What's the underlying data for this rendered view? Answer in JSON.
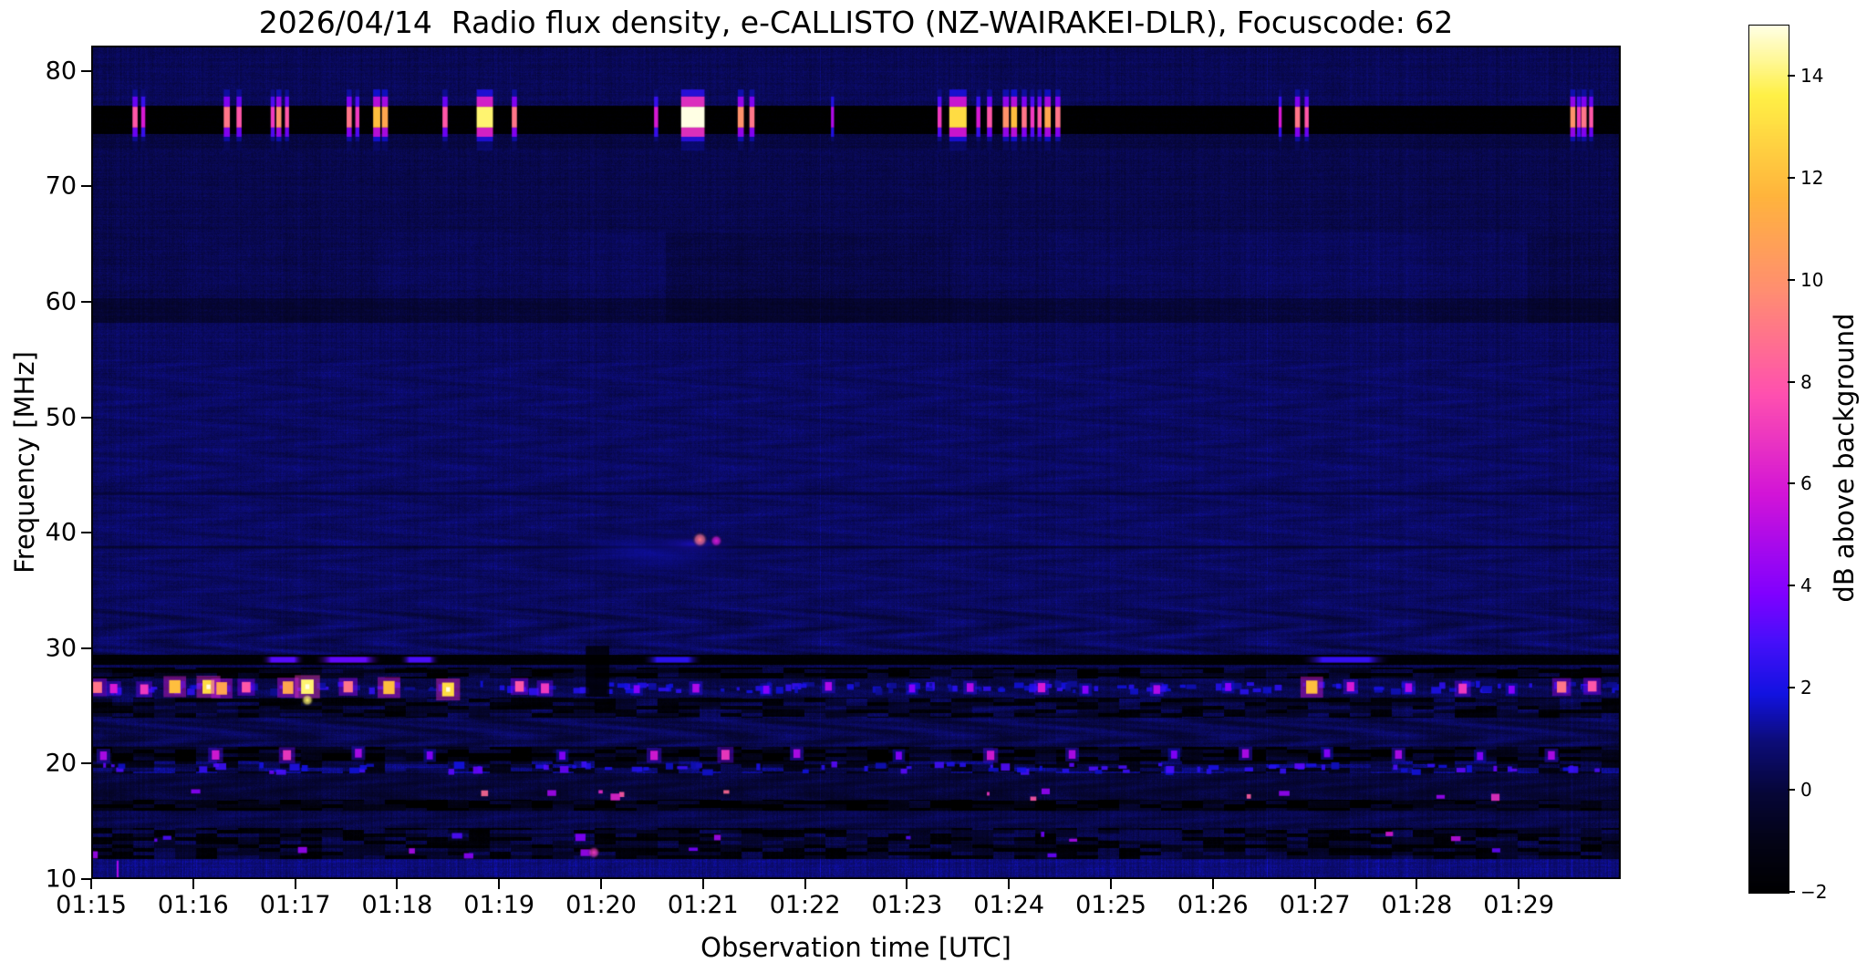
{
  "chart_data": {
    "type": "heatmap",
    "title": "2026/04/14  Radio flux density, e-CALLISTO (NZ-WAIRAKEI-DLR), Focuscode: 62",
    "xlabel": "Observation time [UTC]",
    "ylabel": "Frequency [MHz]",
    "colorbar_label": "dB above background",
    "x_ticks": [
      {
        "label": "01:15",
        "t": 0
      },
      {
        "label": "01:16",
        "t": 1
      },
      {
        "label": "01:17",
        "t": 2
      },
      {
        "label": "01:18",
        "t": 3
      },
      {
        "label": "01:19",
        "t": 4
      },
      {
        "label": "01:20",
        "t": 5
      },
      {
        "label": "01:21",
        "t": 6
      },
      {
        "label": "01:22",
        "t": 7
      },
      {
        "label": "01:23",
        "t": 8
      },
      {
        "label": "01:24",
        "t": 9
      },
      {
        "label": "01:25",
        "t": 10
      },
      {
        "label": "01:26",
        "t": 11
      },
      {
        "label": "01:27",
        "t": 12
      },
      {
        "label": "01:28",
        "t": 13
      },
      {
        "label": "01:29",
        "t": 14
      }
    ],
    "y_ticks": [
      {
        "label": "10",
        "f": 10
      },
      {
        "label": "20",
        "f": 20
      },
      {
        "label": "30",
        "f": 30
      },
      {
        "label": "40",
        "f": 40
      },
      {
        "label": "50",
        "f": 50
      },
      {
        "label": "60",
        "f": 60
      },
      {
        "label": "70",
        "f": 70
      },
      {
        "label": "80",
        "f": 80
      }
    ],
    "colorbar_ticks": [
      {
        "label": "14",
        "v": 14
      },
      {
        "label": "12",
        "v": 12
      },
      {
        "label": "10",
        "v": 10
      },
      {
        "label": "8",
        "v": 8
      },
      {
        "label": "6",
        "v": 6
      },
      {
        "label": "4",
        "v": 4
      },
      {
        "label": "2",
        "v": 2
      },
      {
        "label": "0",
        "v": 0
      },
      {
        "label": "−2",
        "v": -2
      }
    ],
    "x_range_minutes": [
      0,
      15
    ],
    "y_range_mhz": [
      10,
      82.2
    ],
    "color_range_db": [
      -2,
      15.0
    ],
    "grid": false,
    "colormap_stops": [
      [
        0.0,
        [
          0,
          0,
          0
        ]
      ],
      [
        0.06,
        [
          3,
          3,
          22
        ]
      ],
      [
        0.115,
        [
          6,
          6,
          55
        ]
      ],
      [
        0.175,
        [
          12,
          12,
          120
        ]
      ],
      [
        0.23,
        [
          18,
          18,
          225
        ]
      ],
      [
        0.29,
        [
          70,
          15,
          250
        ]
      ],
      [
        0.345,
        [
          128,
          0,
          255
        ]
      ],
      [
        0.46,
        [
          210,
          20,
          215
        ]
      ],
      [
        0.575,
        [
          255,
          80,
          175
        ]
      ],
      [
        0.69,
        [
          255,
          140,
          115
        ]
      ],
      [
        0.805,
        [
          255,
          180,
          60
        ]
      ],
      [
        0.92,
        [
          255,
          240,
          70
        ]
      ],
      [
        1.0,
        [
          255,
          255,
          228
        ]
      ]
    ],
    "background_regions": [
      {
        "f": [
          77,
          82.2
        ],
        "base": 0.45,
        "streak": 0.35,
        "wave": 0.06,
        "dash": 0,
        "blocky": 0
      },
      {
        "f": [
          74.55,
          77
        ],
        "base": -1.95,
        "streak": 0.04,
        "wave": 0,
        "dash": 0,
        "blocky": 0
      },
      {
        "f": [
          73.3,
          74.55
        ],
        "base": 0.1,
        "streak": 0.22,
        "wave": 0,
        "dash": 0,
        "blocky": 0
      },
      {
        "f": [
          66,
          73.3
        ],
        "base": 0.3,
        "streak": 0.3,
        "wave": 0.05,
        "dash": 0,
        "blocky": 0
      },
      {
        "f": [
          60.3,
          66
        ],
        "base": 0.35,
        "streak": 0.32,
        "wave": 0.07,
        "dash": 0,
        "blocky": 1
      },
      {
        "f": [
          58.2,
          60.3
        ],
        "base": -0.2,
        "streak": 0.35,
        "wave": 0.06,
        "dash": 0,
        "blocky": 1
      },
      {
        "f": [
          55,
          58.2
        ],
        "base": 0.55,
        "streak": 0.35,
        "wave": 0.07,
        "dash": 0,
        "blocky": 0
      },
      {
        "f": [
          33.5,
          55
        ],
        "base": 0.62,
        "streak": 0.3,
        "wave": 0.22,
        "dash": 0,
        "blocky": 0
      },
      {
        "f": [
          29.45,
          33.5
        ],
        "base": 0.5,
        "streak": 0.3,
        "wave": 0.42,
        "dash": 0,
        "blocky": 0
      },
      {
        "f": [
          28.6,
          29.45
        ],
        "base": -1.75,
        "streak": 0.05,
        "wave": 0,
        "dash": 0,
        "blocky": 0
      },
      {
        "f": [
          28.3,
          28.6
        ],
        "base": 0.4,
        "streak": 0.3,
        "wave": 0.2,
        "dash": 0,
        "blocky": 0
      },
      {
        "f": [
          27.35,
          28.3
        ],
        "base": -0.8,
        "streak": 0.3,
        "wave": 0.25,
        "dash": 1,
        "blocky": 0
      },
      {
        "f": [
          25.75,
          27.35
        ],
        "base": 0.3,
        "streak": 0.35,
        "wave": 0.3,
        "dash": 0,
        "blocky": 0
      },
      {
        "f": [
          24.0,
          25.75
        ],
        "base": -0.5,
        "streak": 0.35,
        "wave": 0.3,
        "dash": 1,
        "blocky": 0
      },
      {
        "f": [
          21.45,
          24.0
        ],
        "base": 0.3,
        "streak": 0.3,
        "wave": 0.48,
        "dash": 0,
        "blocky": 0
      },
      {
        "f": [
          20.2,
          21.45
        ],
        "base": -1.0,
        "streak": 0.25,
        "wave": 0.2,
        "dash": 1,
        "blocky": 0
      },
      {
        "f": [
          19.2,
          20.2
        ],
        "base": 0.1,
        "streak": 0.4,
        "wave": 0.25,
        "dash": 1,
        "blocky": 0
      },
      {
        "f": [
          16.9,
          19.2
        ],
        "base": -0.05,
        "streak": 0.4,
        "wave": 0.32,
        "dash": 0,
        "blocky": 0
      },
      {
        "f": [
          15.9,
          16.9
        ],
        "base": -1.2,
        "streak": 0.3,
        "wave": 0.15,
        "dash": 1,
        "blocky": 0
      },
      {
        "f": [
          14.4,
          15.9
        ],
        "base": 0.25,
        "streak": 0.4,
        "wave": 0.25,
        "dash": 0,
        "blocky": 0
      },
      {
        "f": [
          12.9,
          14.4
        ],
        "base": -0.6,
        "streak": 0.45,
        "wave": 0.2,
        "dash": 1,
        "blocky": 0
      },
      {
        "f": [
          11.7,
          12.9
        ],
        "base": -0.7,
        "streak": 0.45,
        "wave": 0.2,
        "dash": 1,
        "blocky": 0
      },
      {
        "f": [
          10,
          11.7
        ],
        "base": 1.0,
        "streak": 0.5,
        "wave": 0.1,
        "dash": 0,
        "blocky": 0
      }
    ],
    "features": {
      "rfi_band_76mhz": {
        "f_core": [
          75.1,
          76.9
        ],
        "bursts": [
          [
            0.43,
            0.05,
            8
          ],
          [
            0.51,
            0.04,
            6
          ],
          [
            1.33,
            0.06,
            9
          ],
          [
            1.45,
            0.05,
            8
          ],
          [
            1.78,
            0.04,
            7
          ],
          [
            1.84,
            0.05,
            10
          ],
          [
            1.92,
            0.04,
            8
          ],
          [
            2.53,
            0.05,
            9
          ],
          [
            2.61,
            0.04,
            7
          ],
          [
            2.8,
            0.07,
            12
          ],
          [
            2.88,
            0.06,
            11
          ],
          [
            3.47,
            0.05,
            8
          ],
          [
            3.86,
            0.16,
            14
          ],
          [
            4.15,
            0.05,
            9
          ],
          [
            5.54,
            0.04,
            6
          ],
          [
            5.9,
            0.23,
            15
          ],
          [
            6.37,
            0.06,
            10
          ],
          [
            6.48,
            0.05,
            9
          ],
          [
            7.27,
            0.03,
            5
          ],
          [
            8.32,
            0.04,
            7
          ],
          [
            8.5,
            0.17,
            13
          ],
          [
            8.7,
            0.04,
            6
          ],
          [
            8.81,
            0.05,
            8
          ],
          [
            8.97,
            0.06,
            10
          ],
          [
            9.05,
            0.06,
            12
          ],
          [
            9.15,
            0.05,
            9
          ],
          [
            9.23,
            0.04,
            7
          ],
          [
            9.3,
            0.04,
            8
          ],
          [
            9.38,
            0.06,
            11
          ],
          [
            9.48,
            0.05,
            9
          ],
          [
            11.66,
            0.03,
            6
          ],
          [
            11.83,
            0.05,
            9
          ],
          [
            11.92,
            0.04,
            8
          ],
          [
            14.53,
            0.05,
            10
          ],
          [
            14.59,
            0.04,
            7
          ],
          [
            14.64,
            0.05,
            9
          ],
          [
            14.71,
            0.04,
            8
          ]
        ]
      },
      "line_29mhz": {
        "f": 29.0,
        "bright_segments": [
          [
            1.66,
            2.1,
            3.2
          ],
          [
            2.18,
            2.86,
            3.4
          ],
          [
            3.02,
            3.42,
            3.0
          ],
          [
            5.4,
            6.0,
            2.4
          ],
          [
            11.85,
            12.75,
            2.6
          ]
        ]
      },
      "drift_blob_40mhz": [
        {
          "t": 5.5,
          "f": 38.3,
          "rt": 1.5,
          "rf": 3.0,
          "amp": 1.7
        },
        {
          "t": 5.9,
          "f": 39.0,
          "rt": 0.55,
          "rf": 1.1,
          "amp": 2.3
        }
      ],
      "bright_dots": [
        {
          "t": 5.97,
          "f": 39.4,
          "amp": 9,
          "r": 5
        },
        {
          "t": 6.13,
          "f": 39.3,
          "amp": 6,
          "r": 4
        },
        {
          "t": 2.12,
          "f": 25.5,
          "amp": 14,
          "r": 4
        },
        {
          "t": 4.93,
          "f": 12.3,
          "amp": 7,
          "r": 4
        }
      ],
      "burst_line_26mhz": {
        "f": 26.55,
        "bursts": [
          [
            0.06,
            9
          ],
          [
            0.22,
            6
          ],
          [
            0.52,
            7
          ],
          [
            0.82,
            12
          ],
          [
            1.15,
            13
          ],
          [
            1.28,
            11
          ],
          [
            1.52,
            8
          ],
          [
            1.93,
            11
          ],
          [
            2.12,
            14
          ],
          [
            2.52,
            9
          ],
          [
            2.92,
            12
          ],
          [
            3.5,
            13
          ],
          [
            4.2,
            8
          ],
          [
            4.45,
            7
          ],
          [
            5.35,
            4
          ],
          [
            5.93,
            5
          ],
          [
            6.62,
            4
          ],
          [
            7.23,
            5
          ],
          [
            8.05,
            4
          ],
          [
            8.62,
            5
          ],
          [
            9.32,
            6
          ],
          [
            9.75,
            4
          ],
          [
            10.45,
            5
          ],
          [
            11.15,
            4
          ],
          [
            11.97,
            12
          ],
          [
            12.35,
            6
          ],
          [
            12.92,
            5
          ],
          [
            13.45,
            7
          ],
          [
            13.93,
            4
          ],
          [
            14.42,
            9
          ],
          [
            14.72,
            8
          ]
        ]
      },
      "burst_line_21mhz": {
        "f": 20.8,
        "bursts": [
          [
            0.12,
            5
          ],
          [
            1.22,
            6
          ],
          [
            1.92,
            7
          ],
          [
            2.62,
            5
          ],
          [
            3.32,
            4
          ],
          [
            4.62,
            4
          ],
          [
            5.52,
            6
          ],
          [
            6.22,
            7
          ],
          [
            6.92,
            5
          ],
          [
            7.92,
            4
          ],
          [
            8.82,
            6
          ],
          [
            9.62,
            5
          ],
          [
            10.62,
            4
          ],
          [
            11.32,
            5
          ],
          [
            12.12,
            4
          ],
          [
            12.82,
            5
          ],
          [
            13.62,
            4
          ],
          [
            14.32,
            5
          ]
        ]
      },
      "dash_lines": [
        {
          "f": 26.55,
          "n": 170,
          "amp_lo": 1.2,
          "amp_hi": 2.6
        },
        {
          "f": 19.6,
          "n": 90,
          "amp_lo": 1.5,
          "amp_hi": 3.5
        },
        {
          "f": 17.3,
          "n": 14,
          "amp_lo": 4,
          "amp_hi": 9
        },
        {
          "f": 13.6,
          "n": 10,
          "amp_lo": 3,
          "amp_hi": 6
        },
        {
          "f": 12.3,
          "n": 8,
          "amp_lo": 3,
          "amp_hi": 5.5
        }
      ],
      "dark_lines": [
        {
          "f": 43.4,
          "v": -0.75
        },
        {
          "f": 38.75,
          "v": -0.9
        }
      ],
      "dark_column": {
        "t": [
          4.85,
          5.08
        ],
        "f": [
          25.8,
          30.2
        ]
      },
      "vertical_line": {
        "t": 0.25,
        "f": [
          10,
          11.6
        ],
        "amp": 5
      }
    }
  }
}
